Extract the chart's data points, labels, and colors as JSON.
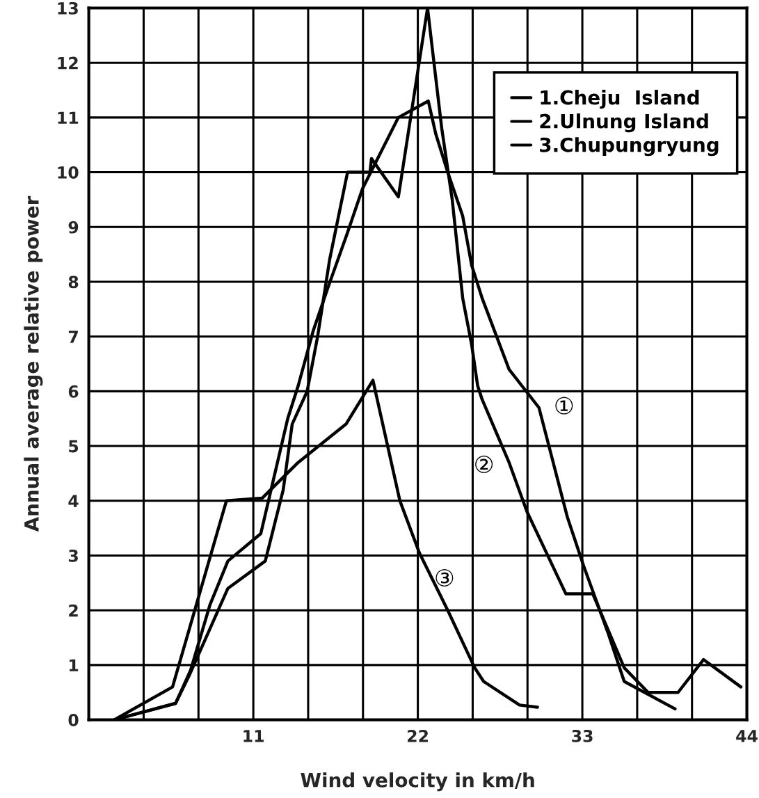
{
  "chart_data": {
    "type": "line",
    "xlabel": "Wind velocity in km/h",
    "ylabel": "Annual average relative power",
    "xlim": [
      0,
      44
    ],
    "ylim": [
      0,
      13
    ],
    "xticks": [
      {
        "value": 3.667,
        "label": null
      },
      {
        "value": 7.333,
        "label": null
      },
      {
        "value": 11,
        "label": "11"
      },
      {
        "value": 14.667,
        "label": null
      },
      {
        "value": 18.333,
        "label": null
      },
      {
        "value": 22,
        "label": "22"
      },
      {
        "value": 25.667,
        "label": null
      },
      {
        "value": 29.333,
        "label": null
      },
      {
        "value": 33,
        "label": "33"
      },
      {
        "value": 36.667,
        "label": null
      },
      {
        "value": 40.333,
        "label": null
      },
      {
        "value": 44,
        "label": "44"
      }
    ],
    "yticks": [
      0,
      1,
      2,
      3,
      4,
      5,
      6,
      7,
      8,
      9,
      10,
      11,
      12,
      13
    ],
    "grid": true,
    "legend": "top right",
    "marker": "none",
    "line_style": "solid",
    "series": [
      {
        "name": "1.Cheju  Island",
        "color": "#000000",
        "x": [
          1.7,
          5.8,
          6.8,
          8.1,
          9.3,
          11.5,
          13.3,
          14.0,
          15.0,
          16.0,
          17.3,
          18.3,
          20.7,
          22.7,
          23.2,
          24.0,
          25.0,
          25.6,
          26.3,
          28.1,
          30.1,
          32.0,
          33.1,
          34.7,
          35.8,
          39.2
        ],
        "values": [
          0,
          0.3,
          0.9,
          2.1,
          2.9,
          3.4,
          5.5,
          6.1,
          7.1,
          7.9,
          8.9,
          9.7,
          11.0,
          11.3,
          10.7,
          10.0,
          9.2,
          8.3,
          7.7,
          6.4,
          5.7,
          3.7,
          2.8,
          1.6,
          0.7,
          0.2
        ]
      },
      {
        "name": "2.Ulnung Island",
        "color": "#000000",
        "x": [
          1.7,
          5.8,
          6.7,
          9.3,
          11.8,
          13.0,
          13.6,
          14.6,
          15.3,
          16.1,
          17.3,
          18.8,
          18.9,
          20.7,
          22.65,
          23.1,
          23.6,
          24.3,
          25.0,
          25.6,
          26.0,
          26.3,
          28.1,
          29.3,
          31.9,
          33.7,
          35.8,
          37.4,
          39.4,
          41.1,
          43.6
        ],
        "values": [
          0,
          0.3,
          0.8,
          2.4,
          2.9,
          4.2,
          5.4,
          6.0,
          7.0,
          8.4,
          10.0,
          10.0,
          10.25,
          9.55,
          13.0,
          11.95,
          10.8,
          9.5,
          7.7,
          6.85,
          6.1,
          5.85,
          4.7,
          3.8,
          2.3,
          2.3,
          0.95,
          0.5,
          0.5,
          1.1,
          0.6
        ]
      },
      {
        "name": "3.Chupungryung",
        "color": "#000000",
        "x": [
          1.7,
          5.6,
          9.2,
          11.6,
          14.0,
          17.2,
          19.0,
          20.8,
          22.1,
          24.0,
          25.8,
          26.4,
          28.8,
          30.0
        ],
        "values": [
          0,
          0.6,
          4.0,
          4.05,
          4.7,
          5.4,
          6.2,
          4.0,
          3.05,
          2.0,
          0.95,
          0.7,
          0.27,
          0.23
        ]
      }
    ],
    "annotations": [
      {
        "text": "①",
        "x": 30.1,
        "y": 5.7
      },
      {
        "text": "②",
        "x": 28.1,
        "y": 4.7
      },
      {
        "text": "③",
        "x": 22.1,
        "y": 3.05
      }
    ]
  }
}
